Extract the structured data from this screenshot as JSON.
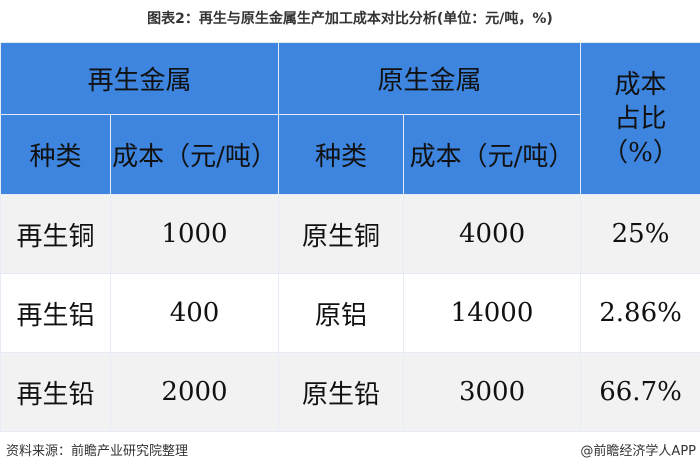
{
  "title": "图表2：再生与原生金属生产加工成本对比分析(单位：元/吨，%)",
  "chart_data": {
    "type": "table",
    "title": "图表2：再生与原生金属生产加工成本对比分析(单位：元/吨，%)",
    "group_headers": [
      "再生金属",
      "原生金属",
      "成本占比（%）"
    ],
    "columns": [
      "种类",
      "成本（元/吨）",
      "种类",
      "成本（元/吨）"
    ],
    "ratio_header": "成本\n占比\n（%）",
    "rows": [
      [
        "再生铜",
        "1000",
        "原生铜",
        "4000",
        "25%"
      ],
      [
        "再生铝",
        "400",
        "原铝",
        "14000",
        "2.86%"
      ],
      [
        "再生铅",
        "2000",
        "原生铅",
        "3000",
        "66.7%"
      ]
    ]
  },
  "colors": {
    "header": "#3d85de",
    "row_alt": "#f2f2f2"
  },
  "footer": {
    "source": "资料来源：前瞻产业研究院整理",
    "brand": "@前瞻经济学人APP"
  }
}
